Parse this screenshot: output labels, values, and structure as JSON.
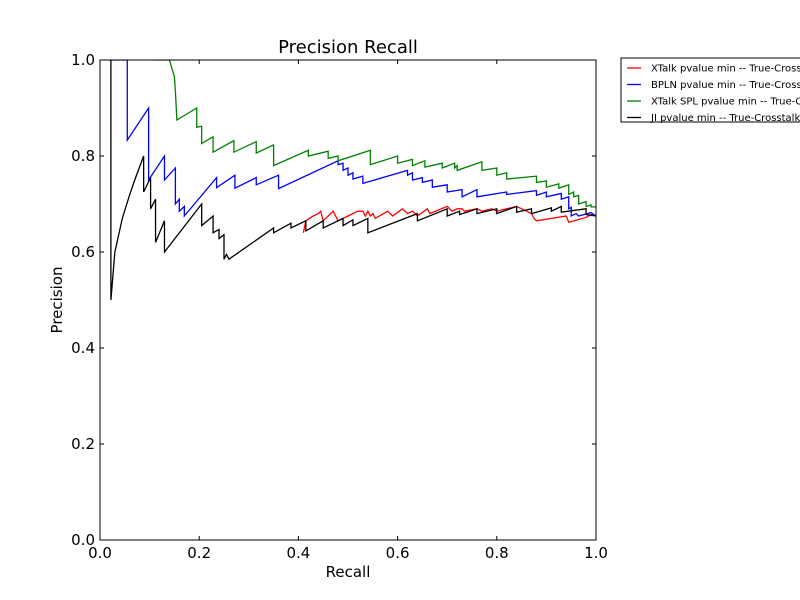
{
  "chart_data": {
    "type": "line",
    "title": "Precision Recall",
    "xlabel": "Recall",
    "ylabel": "Precision",
    "xlim": [
      0.0,
      1.0
    ],
    "ylim": [
      0.0,
      1.0
    ],
    "xticks": [
      "0.0",
      "0.2",
      "0.4",
      "0.6",
      "0.8",
      "1.0"
    ],
    "yticks": [
      "0.0",
      "0.2",
      "0.4",
      "0.6",
      "0.8",
      "1.0"
    ],
    "grid": false,
    "legend_position": "outside-top-right",
    "series": [
      {
        "name": "XTalk pvalue min -- True-Crosstalk",
        "color": "#ff0000",
        "points": [
          [
            0.41,
            0.64
          ],
          [
            0.415,
            0.665
          ],
          [
            0.43,
            0.675
          ],
          [
            0.44,
            0.68
          ],
          [
            0.445,
            0.685
          ],
          [
            0.45,
            0.665
          ],
          [
            0.47,
            0.685
          ],
          [
            0.48,
            0.665
          ],
          [
            0.49,
            0.67
          ],
          [
            0.5,
            0.675
          ],
          [
            0.52,
            0.685
          ],
          [
            0.53,
            0.685
          ],
          [
            0.535,
            0.675
          ],
          [
            0.54,
            0.685
          ],
          [
            0.545,
            0.675
          ],
          [
            0.55,
            0.68
          ],
          [
            0.555,
            0.67
          ],
          [
            0.58,
            0.685
          ],
          [
            0.59,
            0.675
          ],
          [
            0.61,
            0.69
          ],
          [
            0.62,
            0.68
          ],
          [
            0.63,
            0.685
          ],
          [
            0.64,
            0.675
          ],
          [
            0.66,
            0.69
          ],
          [
            0.665,
            0.68
          ],
          [
            0.7,
            0.695
          ],
          [
            0.71,
            0.685
          ],
          [
            0.72,
            0.69
          ],
          [
            0.73,
            0.69
          ],
          [
            0.735,
            0.685
          ],
          [
            0.76,
            0.69
          ],
          [
            0.77,
            0.685
          ],
          [
            0.79,
            0.69
          ],
          [
            0.8,
            0.685
          ],
          [
            0.82,
            0.69
          ],
          [
            0.84,
            0.695
          ],
          [
            0.85,
            0.69
          ],
          [
            0.86,
            0.685
          ],
          [
            0.87,
            0.68
          ],
          [
            0.875,
            0.67
          ],
          [
            0.88,
            0.665
          ],
          [
            0.94,
            0.675
          ],
          [
            0.945,
            0.662
          ],
          [
            0.98,
            0.672
          ],
          [
            0.99,
            0.678
          ],
          [
            1.0,
            0.675
          ]
        ]
      },
      {
        "name": "BPLN pvalue min -- True-Crosstalk",
        "color": "#0000ff",
        "points": [
          [
            0.018,
            1.0
          ],
          [
            0.055,
            1.0
          ],
          [
            0.055,
            0.833
          ],
          [
            0.098,
            0.9
          ],
          [
            0.098,
            0.75
          ],
          [
            0.13,
            0.8
          ],
          [
            0.13,
            0.75
          ],
          [
            0.152,
            0.775
          ],
          [
            0.152,
            0.7
          ],
          [
            0.16,
            0.71
          ],
          [
            0.16,
            0.685
          ],
          [
            0.17,
            0.695
          ],
          [
            0.17,
            0.675
          ],
          [
            0.235,
            0.755
          ],
          [
            0.235,
            0.734
          ],
          [
            0.272,
            0.76
          ],
          [
            0.272,
            0.733
          ],
          [
            0.315,
            0.755
          ],
          [
            0.315,
            0.74
          ],
          [
            0.36,
            0.76
          ],
          [
            0.36,
            0.732
          ],
          [
            0.48,
            0.79
          ],
          [
            0.48,
            0.782
          ],
          [
            0.49,
            0.785
          ],
          [
            0.49,
            0.77
          ],
          [
            0.5,
            0.775
          ],
          [
            0.5,
            0.76
          ],
          [
            0.51,
            0.765
          ],
          [
            0.51,
            0.752
          ],
          [
            0.53,
            0.758
          ],
          [
            0.53,
            0.743
          ],
          [
            0.62,
            0.77
          ],
          [
            0.62,
            0.76
          ],
          [
            0.63,
            0.765
          ],
          [
            0.63,
            0.75
          ],
          [
            0.65,
            0.755
          ],
          [
            0.65,
            0.745
          ],
          [
            0.67,
            0.75
          ],
          [
            0.67,
            0.735
          ],
          [
            0.7,
            0.74
          ],
          [
            0.7,
            0.725
          ],
          [
            0.73,
            0.73
          ],
          [
            0.73,
            0.715
          ],
          [
            0.76,
            0.73
          ],
          [
            0.76,
            0.715
          ],
          [
            0.82,
            0.725
          ],
          [
            0.82,
            0.72
          ],
          [
            0.88,
            0.728
          ],
          [
            0.88,
            0.718
          ],
          [
            0.9,
            0.725
          ],
          [
            0.9,
            0.715
          ],
          [
            0.93,
            0.722
          ],
          [
            0.93,
            0.71
          ],
          [
            0.945,
            0.715
          ],
          [
            0.945,
            0.69
          ],
          [
            0.95,
            0.693
          ],
          [
            0.95,
            0.675
          ],
          [
            0.96,
            0.68
          ],
          [
            0.965,
            0.675
          ],
          [
            0.99,
            0.682
          ],
          [
            1.0,
            0.675
          ]
        ]
      },
      {
        "name": "XTalk SPL pvalue min -- True-Crosstalk",
        "color": "#008000",
        "points": [
          [
            0.108,
            1.0
          ],
          [
            0.14,
            1.0
          ],
          [
            0.15,
            0.965
          ],
          [
            0.152,
            0.935
          ],
          [
            0.155,
            0.875
          ],
          [
            0.195,
            0.9
          ],
          [
            0.195,
            0.86
          ],
          [
            0.205,
            0.862
          ],
          [
            0.205,
            0.826
          ],
          [
            0.228,
            0.84
          ],
          [
            0.228,
            0.808
          ],
          [
            0.27,
            0.832
          ],
          [
            0.27,
            0.808
          ],
          [
            0.315,
            0.83
          ],
          [
            0.315,
            0.806
          ],
          [
            0.35,
            0.823
          ],
          [
            0.35,
            0.78
          ],
          [
            0.42,
            0.812
          ],
          [
            0.42,
            0.8
          ],
          [
            0.46,
            0.81
          ],
          [
            0.46,
            0.795
          ],
          [
            0.48,
            0.8
          ],
          [
            0.48,
            0.79
          ],
          [
            0.545,
            0.812
          ],
          [
            0.545,
            0.782
          ],
          [
            0.6,
            0.8
          ],
          [
            0.6,
            0.785
          ],
          [
            0.63,
            0.793
          ],
          [
            0.63,
            0.78
          ],
          [
            0.655,
            0.79
          ],
          [
            0.655,
            0.777
          ],
          [
            0.69,
            0.785
          ],
          [
            0.69,
            0.775
          ],
          [
            0.715,
            0.785
          ],
          [
            0.715,
            0.775
          ],
          [
            0.72,
            0.78
          ],
          [
            0.72,
            0.77
          ],
          [
            0.77,
            0.788
          ],
          [
            0.77,
            0.77
          ],
          [
            0.8,
            0.775
          ],
          [
            0.8,
            0.76
          ],
          [
            0.82,
            0.765
          ],
          [
            0.82,
            0.752
          ],
          [
            0.88,
            0.758
          ],
          [
            0.88,
            0.745
          ],
          [
            0.9,
            0.748
          ],
          [
            0.9,
            0.735
          ],
          [
            0.925,
            0.742
          ],
          [
            0.925,
            0.733
          ],
          [
            0.945,
            0.74
          ],
          [
            0.945,
            0.72
          ],
          [
            0.955,
            0.725
          ],
          [
            0.955,
            0.715
          ],
          [
            0.965,
            0.718
          ],
          [
            0.965,
            0.7
          ],
          [
            0.98,
            0.705
          ],
          [
            0.98,
            0.695
          ],
          [
            0.99,
            0.698
          ],
          [
            0.99,
            0.694
          ],
          [
            1.0,
            0.694
          ]
        ]
      },
      {
        "name": "JI pvalue min -- True-Crosstalk",
        "color": "#000000",
        "points": [
          [
            0.022,
            1.0
          ],
          [
            0.022,
            0.5
          ],
          [
            0.03,
            0.6
          ],
          [
            0.045,
            0.67
          ],
          [
            0.06,
            0.72
          ],
          [
            0.07,
            0.75
          ],
          [
            0.088,
            0.8
          ],
          [
            0.088,
            0.725
          ],
          [
            0.102,
            0.755
          ],
          [
            0.102,
            0.69
          ],
          [
            0.112,
            0.71
          ],
          [
            0.112,
            0.62
          ],
          [
            0.13,
            0.665
          ],
          [
            0.13,
            0.6
          ],
          [
            0.205,
            0.7
          ],
          [
            0.205,
            0.655
          ],
          [
            0.228,
            0.675
          ],
          [
            0.228,
            0.64
          ],
          [
            0.24,
            0.647
          ],
          [
            0.24,
            0.628
          ],
          [
            0.25,
            0.636
          ],
          [
            0.25,
            0.585
          ],
          [
            0.255,
            0.595
          ],
          [
            0.26,
            0.585
          ],
          [
            0.35,
            0.65
          ],
          [
            0.35,
            0.64
          ],
          [
            0.385,
            0.66
          ],
          [
            0.385,
            0.65
          ],
          [
            0.415,
            0.665
          ],
          [
            0.415,
            0.644
          ],
          [
            0.45,
            0.665
          ],
          [
            0.45,
            0.65
          ],
          [
            0.49,
            0.67
          ],
          [
            0.49,
            0.655
          ],
          [
            0.51,
            0.667
          ],
          [
            0.51,
            0.655
          ],
          [
            0.54,
            0.67
          ],
          [
            0.54,
            0.64
          ],
          [
            0.64,
            0.68
          ],
          [
            0.64,
            0.665
          ],
          [
            0.7,
            0.69
          ],
          [
            0.7,
            0.675
          ],
          [
            0.725,
            0.685
          ],
          [
            0.725,
            0.678
          ],
          [
            0.76,
            0.69
          ],
          [
            0.76,
            0.68
          ],
          [
            0.8,
            0.69
          ],
          [
            0.8,
            0.68
          ],
          [
            0.84,
            0.695
          ],
          [
            0.84,
            0.683
          ],
          [
            0.87,
            0.69
          ],
          [
            0.87,
            0.68
          ],
          [
            0.91,
            0.692
          ],
          [
            0.91,
            0.685
          ],
          [
            0.93,
            0.695
          ],
          [
            0.93,
            0.683
          ],
          [
            0.98,
            0.69
          ],
          [
            0.98,
            0.678
          ],
          [
            1.0,
            0.675
          ]
        ]
      }
    ]
  }
}
